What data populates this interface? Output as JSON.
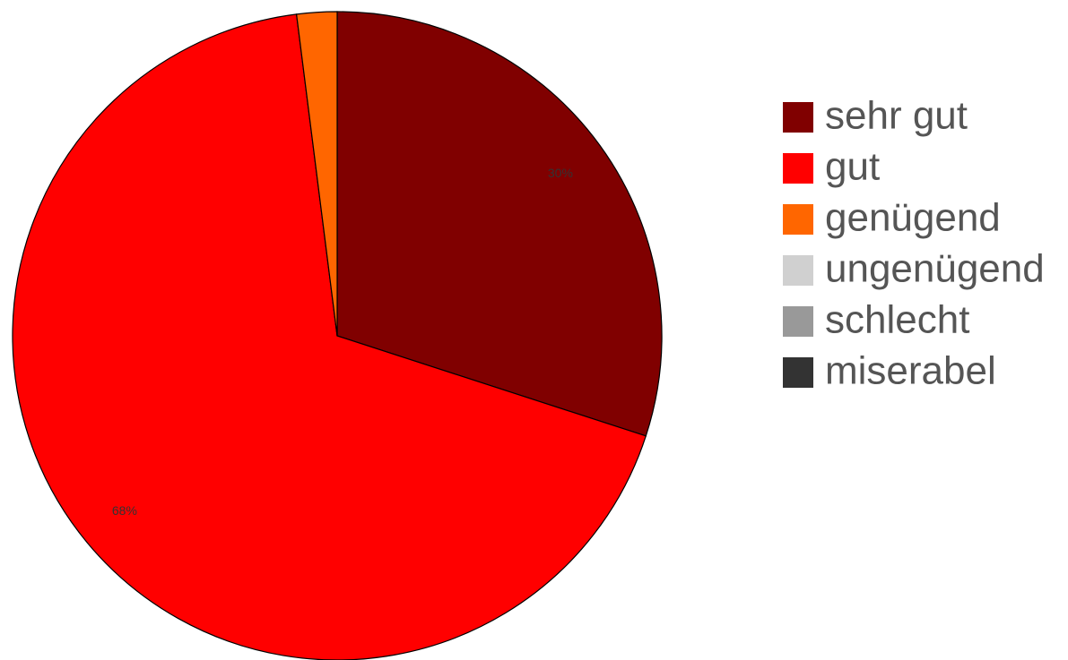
{
  "chart_data": {
    "type": "pie",
    "categories": [
      "sehr gut",
      "gut",
      "genügend",
      "ungenügend",
      "schlecht",
      "miserabel"
    ],
    "values": [
      30,
      68,
      2,
      0,
      0,
      0
    ],
    "data_labels": [
      "30%",
      "68%",
      "",
      "",
      "",
      ""
    ],
    "colors": [
      "#800000",
      "#ff0000",
      "#ff6600",
      "#d0d0d0",
      "#999999",
      "#333333"
    ],
    "start_angle_deg": 0,
    "direction": "clockwise",
    "legend_position": "right"
  }
}
